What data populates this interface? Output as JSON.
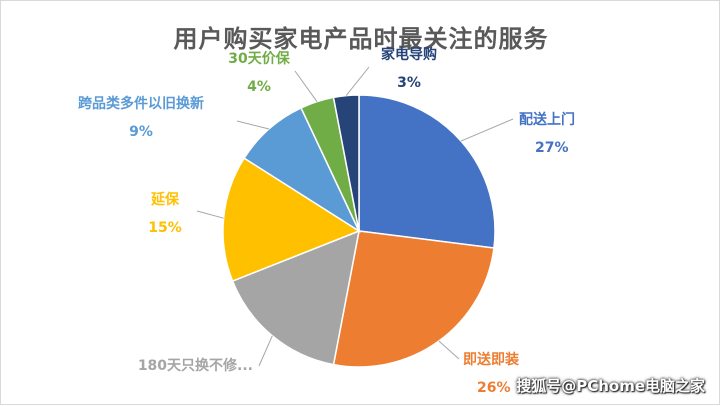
{
  "chart_data": {
    "type": "pie",
    "title": "用户购买家电产品时最关注的服务",
    "slices": [
      {
        "label": "配送上门",
        "value": 27,
        "value_label": "27%",
        "color": "#4472C4"
      },
      {
        "label": "即送即装",
        "value": 26,
        "value_label": "26%",
        "color": "#ED7D31"
      },
      {
        "label": "180天只换不修...",
        "value": 16,
        "value_label": "",
        "color": "#A5A5A5"
      },
      {
        "label": "延保",
        "value": 15,
        "value_label": "15%",
        "color": "#FFC000"
      },
      {
        "label": "跨品类多件以旧换新",
        "value": 9,
        "value_label": "9%",
        "color": "#5B9BD5"
      },
      {
        "label": "30天价保",
        "value": 4,
        "value_label": "4%",
        "color": "#70AD47"
      },
      {
        "label": "家电导购",
        "value": 3,
        "value_label": "3%",
        "color": "#264478"
      }
    ]
  },
  "watermark": "搜狐号@PChome电脑之家"
}
